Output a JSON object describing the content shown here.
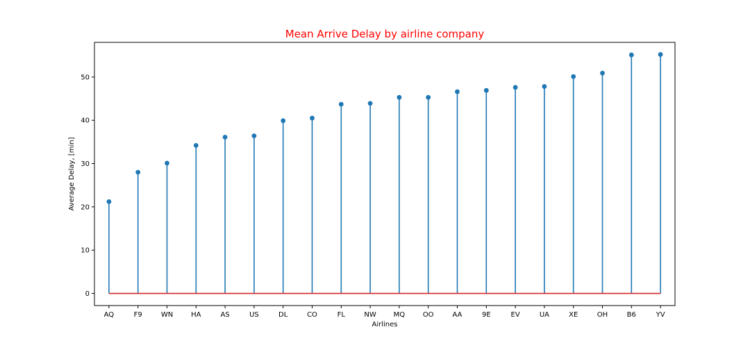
{
  "chart_data": {
    "type": "stem",
    "title": "Mean Arrive Delay by airline company",
    "xlabel": "Airlines",
    "ylabel": "Average Delay, [min]",
    "categories": [
      "AQ",
      "F9",
      "WN",
      "HA",
      "AS",
      "US",
      "DL",
      "CO",
      "FL",
      "NW",
      "MQ",
      "OO",
      "AA",
      "9E",
      "EV",
      "UA",
      "XE",
      "OH",
      "B6",
      "YV"
    ],
    "values": [
      21.2,
      28.0,
      30.1,
      34.2,
      36.1,
      36.4,
      39.9,
      40.5,
      43.7,
      43.9,
      45.3,
      45.3,
      46.6,
      46.9,
      47.6,
      47.8,
      50.1,
      50.9,
      55.1,
      55.2
    ],
    "ylim": [
      -2.8,
      58.0
    ],
    "yticks": [
      0,
      10,
      20,
      30,
      40,
      50
    ],
    "grid": false,
    "colors": {
      "stem": "#1f77b4",
      "marker": "#1f77b4",
      "baseline": "#d62728",
      "title": "#ff0000"
    }
  }
}
